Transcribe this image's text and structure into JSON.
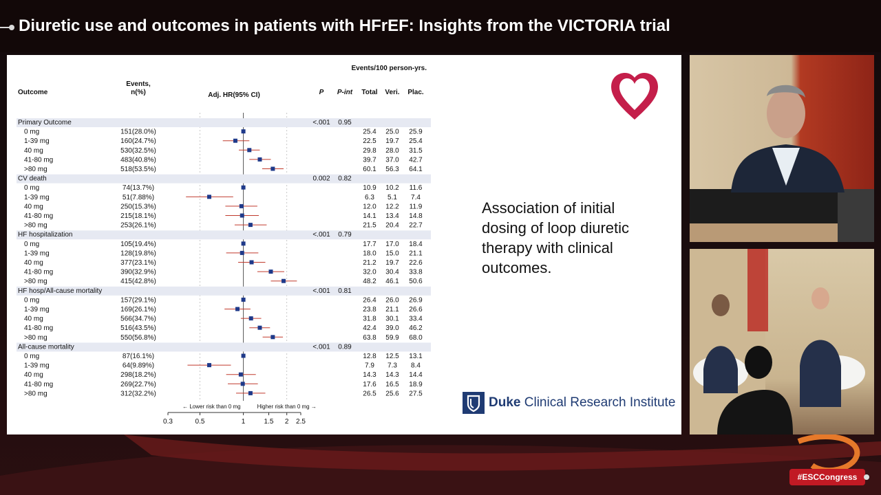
{
  "header": {
    "title": "Diuretic use and outcomes in patients with HFrEF: Insights from the VICTORIA trial"
  },
  "slide": {
    "side_text": "Association of initial dosing of loop diuretic therapy with clinical outcomes.",
    "logo_text_bold": "Duke",
    "logo_text_rest": " Clinical Research Institute"
  },
  "hashtag": "#ESCCongress",
  "colors": {
    "accent_red": "#c11a24",
    "marker_blue": "#1f3a8a",
    "ci_red": "#c0392b",
    "duke_blue": "#1f3b73"
  },
  "chart_data": {
    "type": "forest",
    "header_group": "Events/100 person-yrs.",
    "columns": {
      "outcome": "Outcome",
      "events": "Events,\nn(%)",
      "hr": "Adj. HR(95% CI)",
      "p": "P",
      "pint": "P-int",
      "total": "Total",
      "veri": "Veri.",
      "plac": "Plac."
    },
    "xaxis": {
      "scale": "log",
      "ticks": [
        0.3,
        0.5,
        1,
        1.5,
        2,
        2.5
      ],
      "tick_labels": [
        "0.3",
        "0.5",
        "1",
        "1.5",
        "2",
        "2.5"
      ],
      "range": [
        0.3,
        2.5
      ]
    },
    "arrow_left": "← Lower risk than 0 mg",
    "arrow_right": "Higher risk than 0 mg →",
    "groups": [
      {
        "name": "Primary Outcome",
        "p": "<.001",
        "pint": "0.95",
        "rows": [
          {
            "label": "0 mg",
            "events": "151(28.0%)",
            "hr": 1.0,
            "lo": 1.0,
            "hi": 1.0,
            "total": "25.4",
            "veri": "25.0",
            "plac": "25.9"
          },
          {
            "label": "1-39 mg",
            "events": "160(24.7%)",
            "hr": 0.88,
            "lo": 0.72,
            "hi": 1.1,
            "total": "22.5",
            "veri": "19.7",
            "plac": "25.4"
          },
          {
            "label": "40 mg",
            "events": "530(32.5%)",
            "hr": 1.1,
            "lo": 0.93,
            "hi": 1.3,
            "total": "29.8",
            "veri": "28.0",
            "plac": "31.5"
          },
          {
            "label": "41-80 mg",
            "events": "483(40.8%)",
            "hr": 1.3,
            "lo": 1.1,
            "hi": 1.55,
            "total": "39.7",
            "veri": "37.0",
            "plac": "42.7"
          },
          {
            "label": ">80 mg",
            "events": "518(53.5%)",
            "hr": 1.6,
            "lo": 1.35,
            "hi": 1.9,
            "total": "60.1",
            "veri": "56.3",
            "plac": "64.1"
          }
        ]
      },
      {
        "name": "CV death",
        "p": "0.002",
        "pint": "0.82",
        "rows": [
          {
            "label": "0 mg",
            "events": "74(13.7%)",
            "hr": 1.0,
            "lo": 1.0,
            "hi": 1.0,
            "total": "10.9",
            "veri": "10.2",
            "plac": "11.6"
          },
          {
            "label": "1-39 mg",
            "events": "51(7.88%)",
            "hr": 0.58,
            "lo": 0.4,
            "hi": 0.85,
            "total": "6.3",
            "veri": "5.1",
            "plac": "7.4"
          },
          {
            "label": "40 mg",
            "events": "250(15.3%)",
            "hr": 0.97,
            "lo": 0.75,
            "hi": 1.25,
            "total": "12.0",
            "veri": "12.2",
            "plac": "11.9"
          },
          {
            "label": "41-80 mg",
            "events": "215(18.1%)",
            "hr": 0.98,
            "lo": 0.75,
            "hi": 1.28,
            "total": "14.1",
            "veri": "13.4",
            "plac": "14.8"
          },
          {
            "label": ">80 mg",
            "events": "253(26.1%)",
            "hr": 1.12,
            "lo": 0.87,
            "hi": 1.45,
            "total": "21.5",
            "veri": "20.4",
            "plac": "22.7"
          }
        ]
      },
      {
        "name": "HF hospitalization",
        "p": "<.001",
        "pint": "0.79",
        "rows": [
          {
            "label": "0 mg",
            "events": "105(19.4%)",
            "hr": 1.0,
            "lo": 1.0,
            "hi": 1.0,
            "total": "17.7",
            "veri": "17.0",
            "plac": "18.4"
          },
          {
            "label": "1-39 mg",
            "events": "128(19.8%)",
            "hr": 0.98,
            "lo": 0.76,
            "hi": 1.27,
            "total": "18.0",
            "veri": "15.0",
            "plac": "21.1"
          },
          {
            "label": "40 mg",
            "events": "377(23.1%)",
            "hr": 1.14,
            "lo": 0.92,
            "hi": 1.42,
            "total": "21.2",
            "veri": "19.7",
            "plac": "22.6"
          },
          {
            "label": "41-80 mg",
            "events": "390(32.9%)",
            "hr": 1.55,
            "lo": 1.25,
            "hi": 1.92,
            "total": "32.0",
            "veri": "30.4",
            "plac": "33.8"
          },
          {
            "label": ">80 mg",
            "events": "415(42.8%)",
            "hr": 1.9,
            "lo": 1.55,
            "hi": 2.35,
            "total": "48.2",
            "veri": "46.1",
            "plac": "50.6"
          }
        ]
      },
      {
        "name": "HF hosp/All-cause mortality",
        "p": "<.001",
        "pint": "0.81",
        "rows": [
          {
            "label": "0 mg",
            "events": "157(29.1%)",
            "hr": 1.0,
            "lo": 1.0,
            "hi": 1.0,
            "total": "26.4",
            "veri": "26.0",
            "plac": "26.9"
          },
          {
            "label": "1-39 mg",
            "events": "169(26.1%)",
            "hr": 0.91,
            "lo": 0.74,
            "hi": 1.12,
            "total": "23.8",
            "veri": "21.1",
            "plac": "26.6"
          },
          {
            "label": "40 mg",
            "events": "566(34.7%)",
            "hr": 1.13,
            "lo": 0.96,
            "hi": 1.33,
            "total": "31.8",
            "veri": "30.1",
            "plac": "33.4"
          },
          {
            "label": "41-80 mg",
            "events": "516(43.5%)",
            "hr": 1.3,
            "lo": 1.1,
            "hi": 1.53,
            "total": "42.4",
            "veri": "39.0",
            "plac": "46.2"
          },
          {
            "label": ">80 mg",
            "events": "550(56.8%)",
            "hr": 1.6,
            "lo": 1.36,
            "hi": 1.88,
            "total": "63.8",
            "veri": "59.9",
            "plac": "68.0"
          }
        ]
      },
      {
        "name": "All-cause mortality",
        "p": "<.001",
        "pint": "0.89",
        "rows": [
          {
            "label": "0 mg",
            "events": "87(16.1%)",
            "hr": 1.0,
            "lo": 1.0,
            "hi": 1.0,
            "total": "12.8",
            "veri": "12.5",
            "plac": "13.1"
          },
          {
            "label": "1-39 mg",
            "events": "64(9.89%)",
            "hr": 0.58,
            "lo": 0.41,
            "hi": 0.82,
            "total": "7.9",
            "veri": "7.3",
            "plac": "8.4"
          },
          {
            "label": "40 mg",
            "events": "298(18.2%)",
            "hr": 0.96,
            "lo": 0.76,
            "hi": 1.22,
            "total": "14.3",
            "veri": "14.3",
            "plac": "14.4"
          },
          {
            "label": "41-80 mg",
            "events": "269(22.7%)",
            "hr": 0.99,
            "lo": 0.78,
            "hi": 1.26,
            "total": "17.6",
            "veri": "16.5",
            "plac": "18.9"
          },
          {
            "label": ">80 mg",
            "events": "312(32.2%)",
            "hr": 1.12,
            "lo": 0.89,
            "hi": 1.42,
            "total": "26.5",
            "veri": "25.6",
            "plac": "27.5"
          }
        ]
      }
    ]
  }
}
